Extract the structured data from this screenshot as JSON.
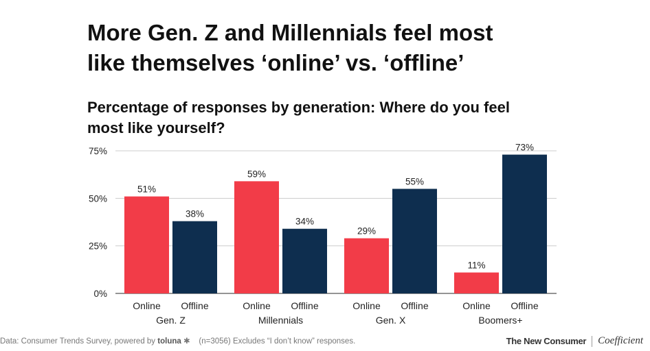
{
  "header": {
    "title_line1": "More Gen. Z and Millennials feel most",
    "title_line2": "like themselves ‘online’ vs. ‘offline’",
    "subtitle_line1": "Percentage of responses by generation: Where do you feel",
    "subtitle_line2": "most like yourself?"
  },
  "chart_data": {
    "type": "bar",
    "title": "More Gen. Z and Millennials feel most like themselves ‘online’ vs. ‘offline’",
    "subtitle": "Percentage of responses by generation: Where do you feel most like yourself?",
    "groups": [
      "Gen. Z",
      "Millennials",
      "Gen. X",
      "Boomers+"
    ],
    "series": [
      {
        "name": "Online",
        "color": "#f23c48",
        "values": [
          51,
          59,
          29,
          11
        ]
      },
      {
        "name": "Offline",
        "color": "#0e2e4f",
        "values": [
          38,
          34,
          55,
          73
        ]
      }
    ],
    "value_labels": [
      [
        "51%",
        "38%"
      ],
      [
        "59%",
        "34%"
      ],
      [
        "29%",
        "55%"
      ],
      [
        "11%",
        "73%"
      ]
    ],
    "yticks": [
      0,
      25,
      50,
      75
    ],
    "ytick_labels": [
      "0%",
      "25%",
      "50%",
      "75%"
    ],
    "ylim": [
      0,
      75
    ],
    "grid": true,
    "legend": "none"
  },
  "footer": {
    "source_prefix": "Data: Consumer Trends Survey, powered by",
    "source_brand": "toluna",
    "source_note": "(n=3056) Excludes “I don’t know” responses.",
    "brand_left": "The New Consumer",
    "brand_right": "Coefficient"
  }
}
